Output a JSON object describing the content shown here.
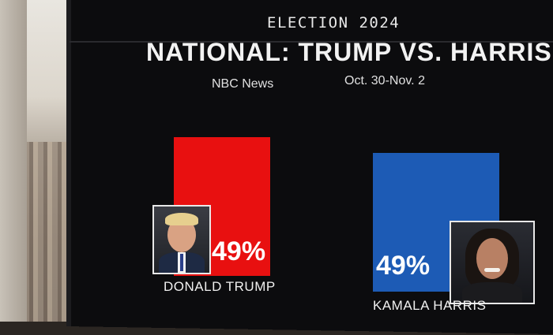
{
  "chart_data": {
    "type": "bar",
    "title": "NATIONAL: TRUMP VS. HARRIS",
    "subtitle": "ELECTION 2024",
    "source": "NBC News",
    "dates": "Oct. 30-Nov. 2",
    "ylim": [
      0,
      100
    ],
    "categories": [
      "DONALD TRUMP",
      "KAMALA HARRIS"
    ],
    "values": [
      49,
      49
    ],
    "value_labels": [
      "49%",
      "49%"
    ],
    "colors": [
      "#e81010",
      "#1d5bb5"
    ]
  }
}
